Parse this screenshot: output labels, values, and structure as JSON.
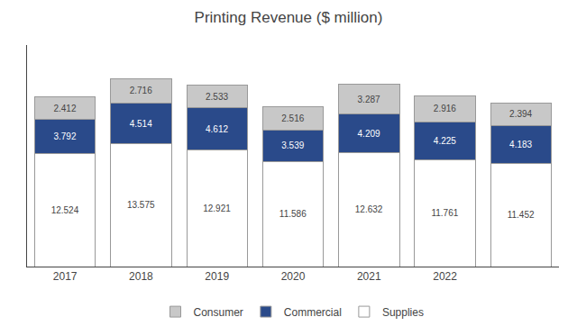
{
  "chart_data": {
    "type": "bar",
    "title": "Printing Revenue ($ million)",
    "categories": [
      "2017",
      "2018",
      "2019",
      "2020",
      "2021",
      "2022",
      null
    ],
    "series": [
      {
        "name": "Supplies",
        "color": "#ffffff",
        "values": [
          12.524,
          13.575,
          12.921,
          11.586,
          12.632,
          11.761,
          11.452
        ]
      },
      {
        "name": "Commercial",
        "color": "#2a4a8a",
        "values": [
          3.792,
          4.514,
          4.612,
          3.539,
          4.209,
          4.225,
          4.183
        ]
      },
      {
        "name": "Consumer",
        "color": "#c8c8c8",
        "values": [
          2.412,
          2.716,
          2.533,
          2.516,
          3.287,
          2.916,
          2.394
        ]
      }
    ],
    "stacked": true,
    "data_labels": true,
    "ylim": [
      0,
      24.5
    ],
    "tick_labels": "x",
    "grid": false,
    "legend": "bottom"
  }
}
